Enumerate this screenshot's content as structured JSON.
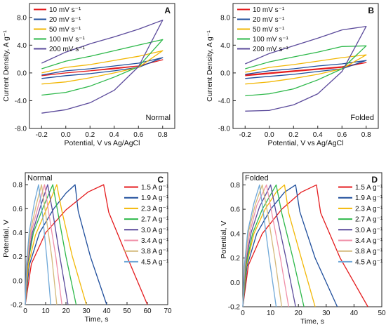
{
  "chart_data": [
    {
      "panel": "A",
      "type": "line",
      "annotation": "Normal",
      "xlabel": "Potential, V vs Ag/AgCl",
      "ylabel": "Current Density, A g⁻¹",
      "xlim": [
        -0.3,
        0.9
      ],
      "ylim": [
        -8,
        10
      ],
      "xticks": [
        -0.2,
        0.0,
        0.2,
        0.4,
        0.6,
        0.8
      ],
      "xtick_labels": [
        "-0.2",
        "0.0",
        "0.2",
        "0.4",
        "0.6",
        "0.8"
      ],
      "yticks": [
        -8,
        -4,
        0,
        4,
        8
      ],
      "ytick_labels": [
        "-8.0",
        "-4.0",
        "0.0",
        "4.0",
        "8.0"
      ],
      "legend_position": "top-left",
      "series": [
        {
          "name": "10 mV s⁻¹",
          "color": "#e41a1c",
          "x": [
            -0.2,
            0.0,
            0.2,
            0.4,
            0.6,
            0.8,
            0.6,
            0.4,
            0.2,
            0.0,
            -0.2
          ],
          "y": [
            -0.4,
            0.0,
            0.3,
            0.7,
            1.0,
            1.9,
            1.0,
            0.6,
            0.3,
            0.0,
            -0.4
          ]
        },
        {
          "name": "20 mV s⁻¹",
          "color": "#1f4e9c",
          "x": [
            -0.2,
            0.0,
            0.2,
            0.4,
            0.6,
            0.8,
            0.6,
            0.4,
            0.2,
            0.0,
            -0.2
          ],
          "y": [
            -0.3,
            0.3,
            0.6,
            1.0,
            1.4,
            2.2,
            0.8,
            0.3,
            -0.1,
            -0.4,
            -0.8
          ]
        },
        {
          "name": "50 mV s⁻¹",
          "color": "#f2b705",
          "x": [
            -0.2,
            0.0,
            0.2,
            0.4,
            0.6,
            0.8,
            0.6,
            0.4,
            0.2,
            0.0,
            -0.2
          ],
          "y": [
            0.0,
            0.8,
            1.2,
            1.8,
            2.4,
            3.2,
            0.8,
            0.0,
            -0.7,
            -1.3,
            -1.6
          ]
        },
        {
          "name": "100 mV s⁻¹",
          "color": "#2db84a",
          "x": [
            -0.2,
            0.0,
            0.2,
            0.4,
            0.6,
            0.8,
            0.6,
            0.4,
            0.2,
            0.0,
            -0.2
          ],
          "y": [
            0.6,
            1.7,
            2.4,
            3.2,
            4.0,
            4.8,
            0.9,
            -0.6,
            -1.9,
            -2.8,
            -3.2
          ]
        },
        {
          "name": "200 mV s⁻¹",
          "color": "#5b4a9b",
          "x": [
            -0.2,
            0.0,
            0.2,
            0.4,
            0.6,
            0.8,
            0.6,
            0.4,
            0.2,
            0.0,
            -0.2
          ],
          "y": [
            1.4,
            3.0,
            4.2,
            5.2,
            6.3,
            7.6,
            0.9,
            -2.5,
            -4.3,
            -5.3,
            -5.8
          ]
        }
      ]
    },
    {
      "panel": "B",
      "type": "line",
      "annotation": "Folded",
      "xlabel": "Potential, V vs Ag/AgCl",
      "ylabel": "Current Density, A g⁻¹",
      "xlim": [
        -0.3,
        0.9
      ],
      "ylim": [
        -8,
        10
      ],
      "xticks": [
        -0.2,
        0.0,
        0.2,
        0.4,
        0.6,
        0.8
      ],
      "xtick_labels": [
        "-0.2",
        "0.0",
        "0.2",
        "0.4",
        "0.6",
        "0.8"
      ],
      "yticks": [
        -8,
        -4,
        0,
        4,
        8
      ],
      "ytick_labels": [
        "-8.0",
        "-4.0",
        "0.0",
        "4.0",
        "8.0"
      ],
      "legend_position": "top-left",
      "series": [
        {
          "name": "10 mV s⁻¹",
          "color": "#e41a1c",
          "x": [
            -0.2,
            0.0,
            0.2,
            0.4,
            0.6,
            0.8,
            0.6,
            0.4,
            0.2,
            0.0,
            -0.2
          ],
          "y": [
            -0.3,
            0.0,
            0.3,
            0.6,
            0.9,
            1.5,
            0.8,
            0.5,
            0.2,
            -0.1,
            -0.4
          ]
        },
        {
          "name": "20 mV s⁻¹",
          "color": "#1f4e9c",
          "x": [
            -0.2,
            0.0,
            0.2,
            0.4,
            0.6,
            0.8,
            0.6,
            0.4,
            0.2,
            0.0,
            -0.2
          ],
          "y": [
            -0.2,
            0.3,
            0.6,
            1.0,
            1.3,
            1.8,
            0.6,
            0.2,
            -0.2,
            -0.5,
            -0.8
          ]
        },
        {
          "name": "50 mV s⁻¹",
          "color": "#f2b705",
          "x": [
            -0.2,
            0.0,
            0.2,
            0.4,
            0.6,
            0.8,
            0.6,
            0.4,
            0.2,
            0.0,
            -0.2
          ],
          "y": [
            0.1,
            0.8,
            1.2,
            1.7,
            2.2,
            2.6,
            0.6,
            -0.2,
            -0.8,
            -1.3,
            -1.6
          ]
        },
        {
          "name": "100 mV s⁻¹",
          "color": "#2db84a",
          "x": [
            -0.2,
            0.0,
            0.2,
            0.4,
            0.6,
            0.8,
            0.6,
            0.4,
            0.2,
            0.0,
            -0.2
          ],
          "y": [
            0.6,
            1.6,
            2.3,
            3.0,
            3.8,
            3.9,
            0.6,
            -1.0,
            -2.3,
            -3.0,
            -3.3
          ]
        },
        {
          "name": "200 mV s⁻¹",
          "color": "#5b4a9b",
          "x": [
            -0.2,
            0.0,
            0.2,
            0.4,
            0.6,
            0.8,
            0.6,
            0.4,
            0.2,
            0.0,
            -0.2
          ],
          "y": [
            1.3,
            2.8,
            3.9,
            5.0,
            6.2,
            6.7,
            0.2,
            -3.0,
            -4.6,
            -5.4,
            -5.5
          ]
        }
      ]
    },
    {
      "panel": "C",
      "type": "line",
      "annotation": "Normal",
      "xlabel": "Time, s",
      "ylabel": "Potential, V",
      "xlim": [
        0,
        70
      ],
      "ylim": [
        -0.2,
        0.9
      ],
      "xticks": [
        0,
        10,
        20,
        30,
        40,
        50,
        60,
        70
      ],
      "xtick_labels": [
        "0",
        "10",
        "20",
        "30",
        "40",
        "50",
        "60",
        "70"
      ],
      "yticks": [
        -0.2,
        0.0,
        0.2,
        0.4,
        0.6,
        0.8
      ],
      "ytick_labels": [
        "-0.2",
        "0.0",
        "0.2",
        "0.4",
        "0.6",
        "0.8"
      ],
      "legend_position": "right",
      "series": [
        {
          "name": "1.5 A g⁻¹",
          "color": "#e41a1c",
          "x": [
            0,
            3,
            10,
            20,
            31,
            38.5,
            41,
            50,
            60
          ],
          "y": [
            -0.2,
            0.14,
            0.4,
            0.59,
            0.74,
            0.8,
            0.57,
            0.2,
            -0.2
          ]
        },
        {
          "name": "1.9 A g⁻¹",
          "color": "#1f4e9c",
          "x": [
            0,
            2,
            7,
            14,
            20,
            24.5,
            26,
            32,
            40
          ],
          "y": [
            -0.2,
            0.13,
            0.4,
            0.6,
            0.73,
            0.8,
            0.58,
            0.2,
            -0.2
          ]
        },
        {
          "name": "2.3 A g⁻¹",
          "color": "#f2b705",
          "x": [
            0,
            1.5,
            5,
            10,
            15.5,
            18,
            23,
            30
          ],
          "y": [
            -0.2,
            0.13,
            0.38,
            0.58,
            0.8,
            0.58,
            0.21,
            -0.2
          ]
        },
        {
          "name": "2.7 A g⁻¹",
          "color": "#2db84a",
          "x": [
            0,
            1,
            4,
            9,
            13.5,
            16,
            20,
            25
          ],
          "y": [
            -0.2,
            0.12,
            0.4,
            0.62,
            0.8,
            0.57,
            0.2,
            -0.2
          ]
        },
        {
          "name": "3.0 A g⁻¹",
          "color": "#5b4a9b",
          "x": [
            0,
            1,
            3.5,
            7.5,
            11,
            13.5,
            17,
            21
          ],
          "y": [
            -0.2,
            0.13,
            0.4,
            0.62,
            0.8,
            0.57,
            0.2,
            -0.2
          ]
        },
        {
          "name": "3.4 A g⁻¹",
          "color": "#f08fa8",
          "x": [
            0,
            0.8,
            3,
            6.5,
            9.5,
            11.5,
            15,
            18
          ],
          "y": [
            -0.2,
            0.13,
            0.41,
            0.63,
            0.8,
            0.57,
            0.2,
            -0.2
          ]
        },
        {
          "name": "3.8 A g⁻¹",
          "color": "#d4b97a",
          "x": [
            0,
            0.7,
            2.5,
            5.5,
            8,
            10,
            13,
            15.5
          ],
          "y": [
            -0.2,
            0.13,
            0.41,
            0.64,
            0.8,
            0.56,
            0.2,
            -0.2
          ]
        },
        {
          "name": "4.5 A g⁻¹",
          "color": "#6fa8d8",
          "x": [
            0,
            0.5,
            2,
            4.5,
            6.5,
            8.5,
            10.5,
            12.5
          ],
          "y": [
            -0.2,
            0.13,
            0.41,
            0.65,
            0.8,
            0.55,
            0.2,
            -0.2
          ]
        }
      ]
    },
    {
      "panel": "D",
      "type": "line",
      "annotation": "Folded",
      "xlabel": "Time, s",
      "ylabel": "Potential, V",
      "xlim": [
        0,
        50
      ],
      "ylim": [
        -0.2,
        0.9
      ],
      "xticks": [
        0,
        10,
        20,
        30,
        40,
        50
      ],
      "xtick_labels": [
        "0",
        "10",
        "20",
        "30",
        "40",
        "50"
      ],
      "yticks": [
        -0.2,
        0.0,
        0.2,
        0.4,
        0.6,
        0.8
      ],
      "ytick_labels": [
        "-0.2",
        "0.0",
        "0.2",
        "0.4",
        "0.6",
        "0.8"
      ],
      "legend_position": "right",
      "series": [
        {
          "name": "1.5 A g⁻¹",
          "color": "#e41a1c",
          "x": [
            0,
            2,
            7,
            14,
            21,
            26.5,
            28,
            35,
            45
          ],
          "y": [
            -0.2,
            0.14,
            0.4,
            0.6,
            0.74,
            0.8,
            0.57,
            0.2,
            -0.2
          ]
        },
        {
          "name": "1.9 A g⁻¹",
          "color": "#1f4e9c",
          "x": [
            0,
            1.5,
            5,
            10,
            15,
            19,
            20.5,
            26,
            34
          ],
          "y": [
            -0.2,
            0.13,
            0.4,
            0.6,
            0.74,
            0.8,
            0.58,
            0.2,
            -0.2
          ]
        },
        {
          "name": "2.3 A g⁻¹",
          "color": "#f2b705",
          "x": [
            0,
            1.2,
            4,
            8,
            12,
            15,
            16.5,
            21,
            26
          ],
          "y": [
            -0.2,
            0.13,
            0.4,
            0.6,
            0.74,
            0.8,
            0.57,
            0.2,
            -0.2
          ]
        },
        {
          "name": "2.7 A g⁻¹",
          "color": "#2db84a",
          "x": [
            0,
            1,
            3.5,
            7,
            12,
            14,
            18,
            22
          ],
          "y": [
            -0.2,
            0.13,
            0.4,
            0.6,
            0.8,
            0.57,
            0.2,
            -0.2
          ]
        },
        {
          "name": "3.0 A g⁻¹",
          "color": "#5b4a9b",
          "x": [
            0,
            0.8,
            3,
            6,
            10,
            12,
            15.5,
            19
          ],
          "y": [
            -0.2,
            0.13,
            0.41,
            0.62,
            0.8,
            0.57,
            0.2,
            -0.2
          ]
        },
        {
          "name": "3.4 A g⁻¹",
          "color": "#f08fa8",
          "x": [
            0,
            0.7,
            2.5,
            5,
            8.5,
            10.5,
            13.5,
            16.5
          ],
          "y": [
            -0.2,
            0.13,
            0.41,
            0.63,
            0.8,
            0.56,
            0.2,
            -0.2
          ]
        },
        {
          "name": "3.8 A g⁻¹",
          "color": "#d4b97a",
          "x": [
            0,
            0.6,
            2,
            4.5,
            7,
            9,
            11.5,
            14
          ],
          "y": [
            -0.2,
            0.13,
            0.41,
            0.64,
            0.8,
            0.56,
            0.2,
            -0.2
          ]
        },
        {
          "name": "4.5 A g⁻¹",
          "color": "#6fa8d8",
          "x": [
            0,
            0.5,
            1.8,
            4,
            6,
            7.5,
            9.5,
            12
          ],
          "y": [
            -0.2,
            0.13,
            0.42,
            0.65,
            0.8,
            0.55,
            0.2,
            -0.2
          ]
        }
      ]
    }
  ]
}
